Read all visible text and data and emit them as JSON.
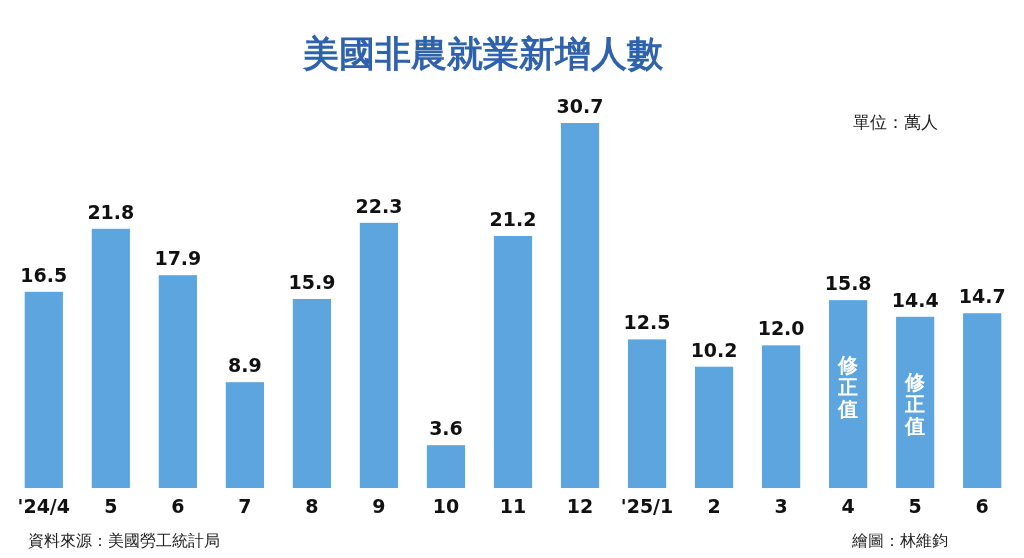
{
  "chart_data": {
    "type": "bar",
    "title": "美國非農就業新增人數",
    "subtitle": "單位：萬人",
    "categories": [
      "'24/4",
      "5",
      "6",
      "7",
      "8",
      "9",
      "10",
      "11",
      "12",
      "'25/1",
      "2",
      "3",
      "4",
      "5",
      "6"
    ],
    "values": [
      16.5,
      21.8,
      17.9,
      8.9,
      15.9,
      22.3,
      3.6,
      21.2,
      30.7,
      12.5,
      10.2,
      12.0,
      15.8,
      14.4,
      14.7
    ],
    "value_labels": [
      "16.5",
      "21.8",
      "17.9",
      "8.9",
      "15.9",
      "22.3",
      "3.6",
      "21.2",
      "30.7",
      "12.5",
      "10.2",
      "12.0",
      "15.8",
      "14.4",
      "14.7"
    ],
    "color": "#5da5de",
    "annotations": [
      {
        "text": "修正值",
        "x": "4",
        "y": 15.8
      },
      "修正值",
      "資料來源：美國勞工統計局",
      "繪圖：林維鈞"
    ]
  }
}
